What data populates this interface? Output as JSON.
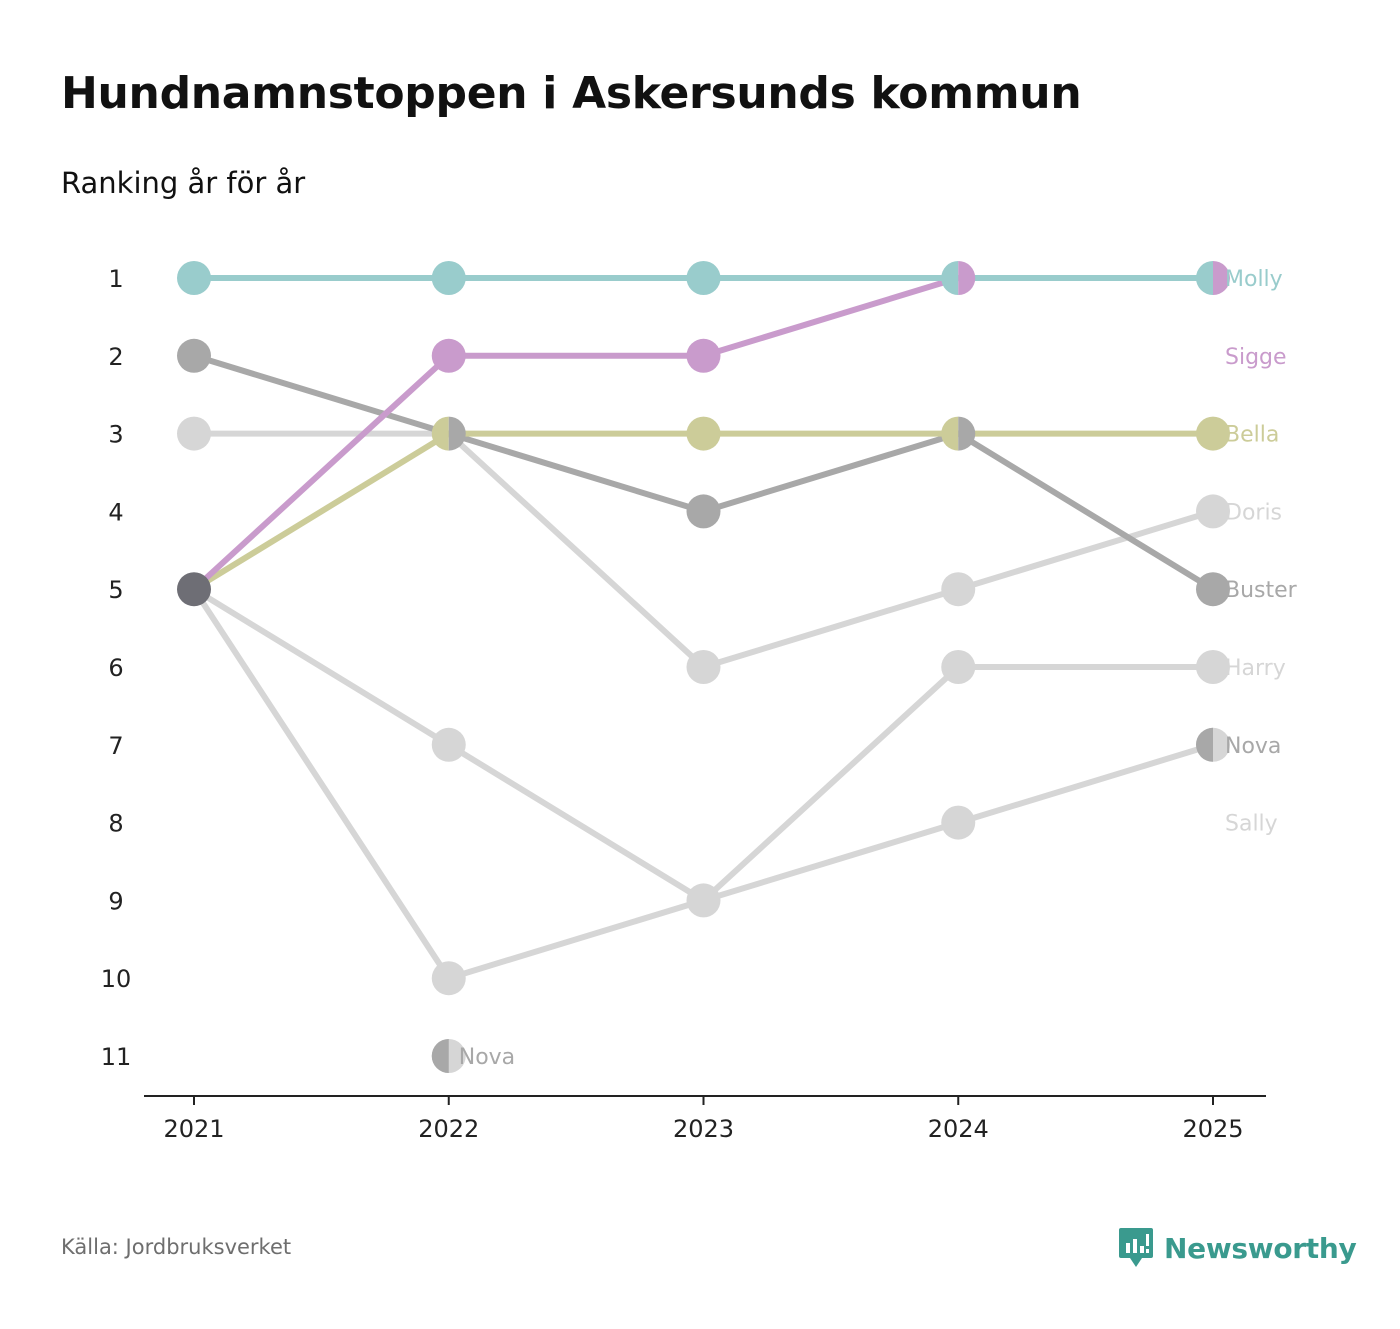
{
  "title": "Hundnamnstoppen i Askersunds kommun",
  "subtitle": "Ranking år för år",
  "source": "Källa: Jordbruksverket",
  "brand": {
    "name": "Newsworthy",
    "icon": "newsworthy-logo-icon",
    "color": "#3a9a8e"
  },
  "chart_data": {
    "type": "line",
    "subtype": "bump",
    "title": "Hundnamnstoppen i Askersunds kommun",
    "subtitle": "Ranking år för år",
    "x": [
      "2021",
      "2022",
      "2023",
      "2024",
      "2025"
    ],
    "y_ticks": [
      1,
      2,
      3,
      4,
      5,
      6,
      7,
      8,
      9,
      10,
      11
    ],
    "ylim": [
      1,
      11
    ],
    "y_reversed": true,
    "xlabel": "",
    "ylabel": "",
    "series": [
      {
        "name": "Molly",
        "color": "#99cccc",
        "values": [
          1,
          1,
          1,
          1,
          1
        ]
      },
      {
        "name": "Sigge",
        "color": "#c99bcc",
        "values": [
          5,
          2,
          2,
          1,
          1
        ]
      },
      {
        "name": "Bella",
        "color": "#cccc99",
        "values": [
          5,
          3,
          3,
          3,
          3
        ]
      },
      {
        "name": "Buster",
        "color": "#a8a8a8",
        "values": [
          2,
          3,
          4,
          3,
          5
        ]
      },
      {
        "name": "Doris",
        "color": "#d6d6d6",
        "values": [
          3,
          3,
          6,
          5,
          4
        ]
      },
      {
        "name": "Harry",
        "color": "#d6d6d6",
        "values": [
          5,
          7,
          9,
          6,
          6
        ]
      },
      {
        "name": "Nova",
        "color": "#a8a8a8",
        "values": [
          null,
          11,
          null,
          null,
          7
        ]
      },
      {
        "name": "Sally",
        "color": "#d6d6d6",
        "values": [
          5,
          10,
          9,
          8,
          7
        ]
      }
    ],
    "end_labels": [
      {
        "name": "Molly",
        "rank": 1,
        "color": "#99cccc"
      },
      {
        "name": "Sigge",
        "rank": 2,
        "color": "#c99bcc"
      },
      {
        "name": "Bella",
        "rank": 3,
        "color": "#cccc99"
      },
      {
        "name": "Doris",
        "rank": 4,
        "color": "#d6d6d6"
      },
      {
        "name": "Buster",
        "rank": 5,
        "color": "#a8a8a8"
      },
      {
        "name": "Harry",
        "rank": 6,
        "color": "#d6d6d6"
      },
      {
        "name": "Nova",
        "rank": 7,
        "color": "#a8a8a8"
      },
      {
        "name": "Sally",
        "rank": 8,
        "color": "#d6d6d6"
      }
    ],
    "inline_labels": [
      {
        "name": "Nova",
        "x": "2022",
        "rank": 11,
        "color": "#a8a8a8"
      }
    ],
    "overlap_dot_color": "#6e6e75"
  }
}
